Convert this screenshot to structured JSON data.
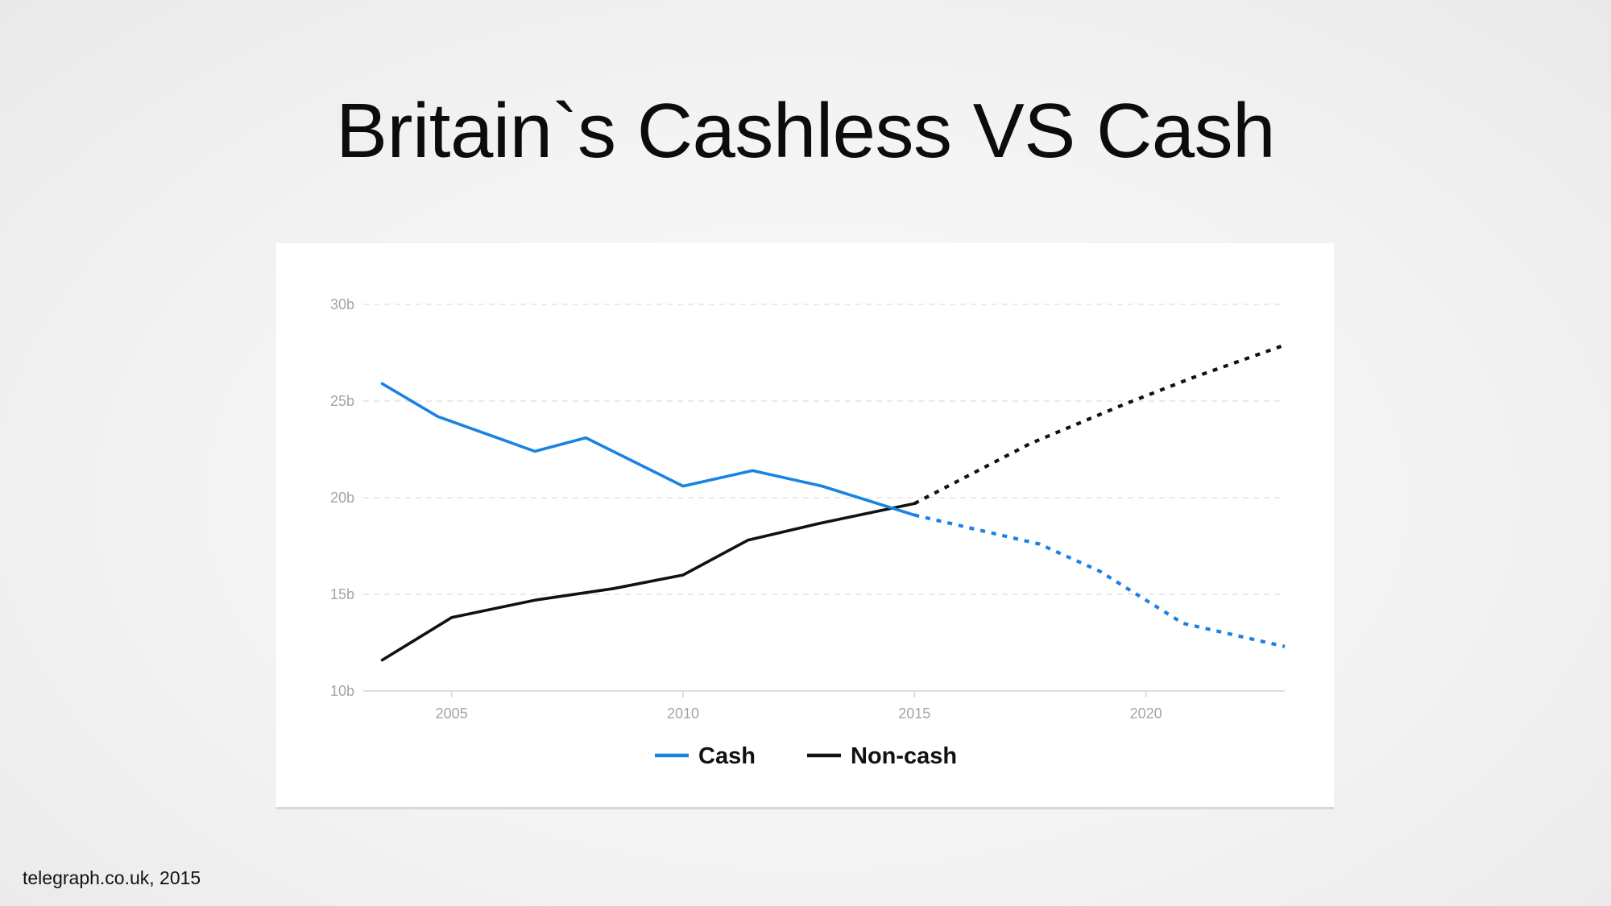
{
  "title": "Britain`s Cashless VS Cash",
  "source": "telegraph.co.uk, 2015",
  "colors": {
    "cash": "#1a82e2",
    "non_cash": "#111111",
    "grid": "#dddddd",
    "tick_text": "#a4a4a4"
  },
  "chart_data": {
    "type": "line",
    "title": "",
    "xlabel": "",
    "ylabel": "",
    "xlim": [
      2003.3,
      2023.0
    ],
    "ylim": [
      10,
      30
    ],
    "y_ticks": [
      {
        "value": 10,
        "label": "10b"
      },
      {
        "value": 15,
        "label": "15b"
      },
      {
        "value": 20,
        "label": "20b"
      },
      {
        "value": 25,
        "label": "25b"
      },
      {
        "value": 30,
        "label": "30b"
      }
    ],
    "x_ticks": [
      {
        "value": 2005,
        "label": "2005"
      },
      {
        "value": 2010,
        "label": "2010"
      },
      {
        "value": 2015,
        "label": "2015"
      },
      {
        "value": 2020,
        "label": "2020"
      }
    ],
    "grid": "horizontal dashed",
    "legend_position": "bottom-center",
    "series": [
      {
        "name": "Cash",
        "color": "#1a82e2",
        "actual": {
          "x": [
            2003.5,
            2004.7,
            2006.8,
            2007.9,
            2010.0,
            2011.5,
            2013.0,
            2015.0
          ],
          "y": [
            25.9,
            24.2,
            22.4,
            23.1,
            20.6,
            21.4,
            20.6,
            19.1
          ]
        },
        "forecast": {
          "x": [
            2015.0,
            2017.7,
            2019.0,
            2020.8,
            2023.0
          ],
          "y": [
            19.1,
            17.6,
            16.2,
            13.5,
            12.3
          ]
        }
      },
      {
        "name": "Non-cash",
        "color": "#111111",
        "actual": {
          "x": [
            2003.5,
            2005.0,
            2006.8,
            2008.5,
            2010.0,
            2011.4,
            2013.0,
            2015.0
          ],
          "y": [
            11.6,
            13.8,
            14.7,
            15.3,
            16.0,
            17.8,
            18.7,
            19.7
          ]
        },
        "forecast": {
          "x": [
            2015.0,
            2017.5,
            2019.5,
            2021.0,
            2023.0
          ],
          "y": [
            19.7,
            22.8,
            24.8,
            26.2,
            27.9
          ]
        }
      }
    ]
  }
}
